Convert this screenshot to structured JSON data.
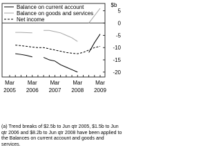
{
  "chart_data": {
    "type": "line",
    "y_unit": "$b",
    "categories": [
      "Mar 2005",
      null,
      null,
      null,
      "Mar 2006",
      null,
      null,
      null,
      "Mar 2007",
      null,
      null,
      null,
      "Mar 2008",
      null,
      null,
      null,
      "Mar 2009"
    ],
    "series": [
      {
        "name": "Balance on current account",
        "color": "#000000",
        "dash": false,
        "values": [
          null,
          -12.5,
          -12.8,
          -13.2,
          -13.8,
          null,
          -14,
          -15,
          -15.5,
          -17,
          -18,
          -19,
          -20,
          null,
          -12,
          -8,
          -4.5
        ]
      },
      {
        "name": "Balance on goods and services",
        "color": "#a6a6a6",
        "dash": false,
        "values": [
          null,
          -3.8,
          -3.8,
          -3.9,
          -4,
          null,
          -3,
          -3,
          -3.5,
          -4,
          -5,
          -6,
          -7.5,
          null,
          0,
          3,
          6
        ]
      },
      {
        "name": "Net income",
        "color": "#000000",
        "dash": true,
        "values": [
          null,
          -9,
          -9.2,
          -9.5,
          -9.8,
          -10,
          -10,
          -10.5,
          -11,
          -11.5,
          -12,
          -12.3,
          -12.5,
          -12,
          -11,
          -10,
          -9.5
        ]
      }
    ],
    "ylim": [
      -22,
      8
    ],
    "yticks": [
      5,
      0,
      -5,
      -10,
      -15,
      -20
    ],
    "note": "(a) Trend breaks of $2.5b to Jun qtr 2005, $1.5b to Jun qtr 2006 and $8.2b to Jun qtr 2008 have been applied to the Balances on current account and goods and services."
  }
}
